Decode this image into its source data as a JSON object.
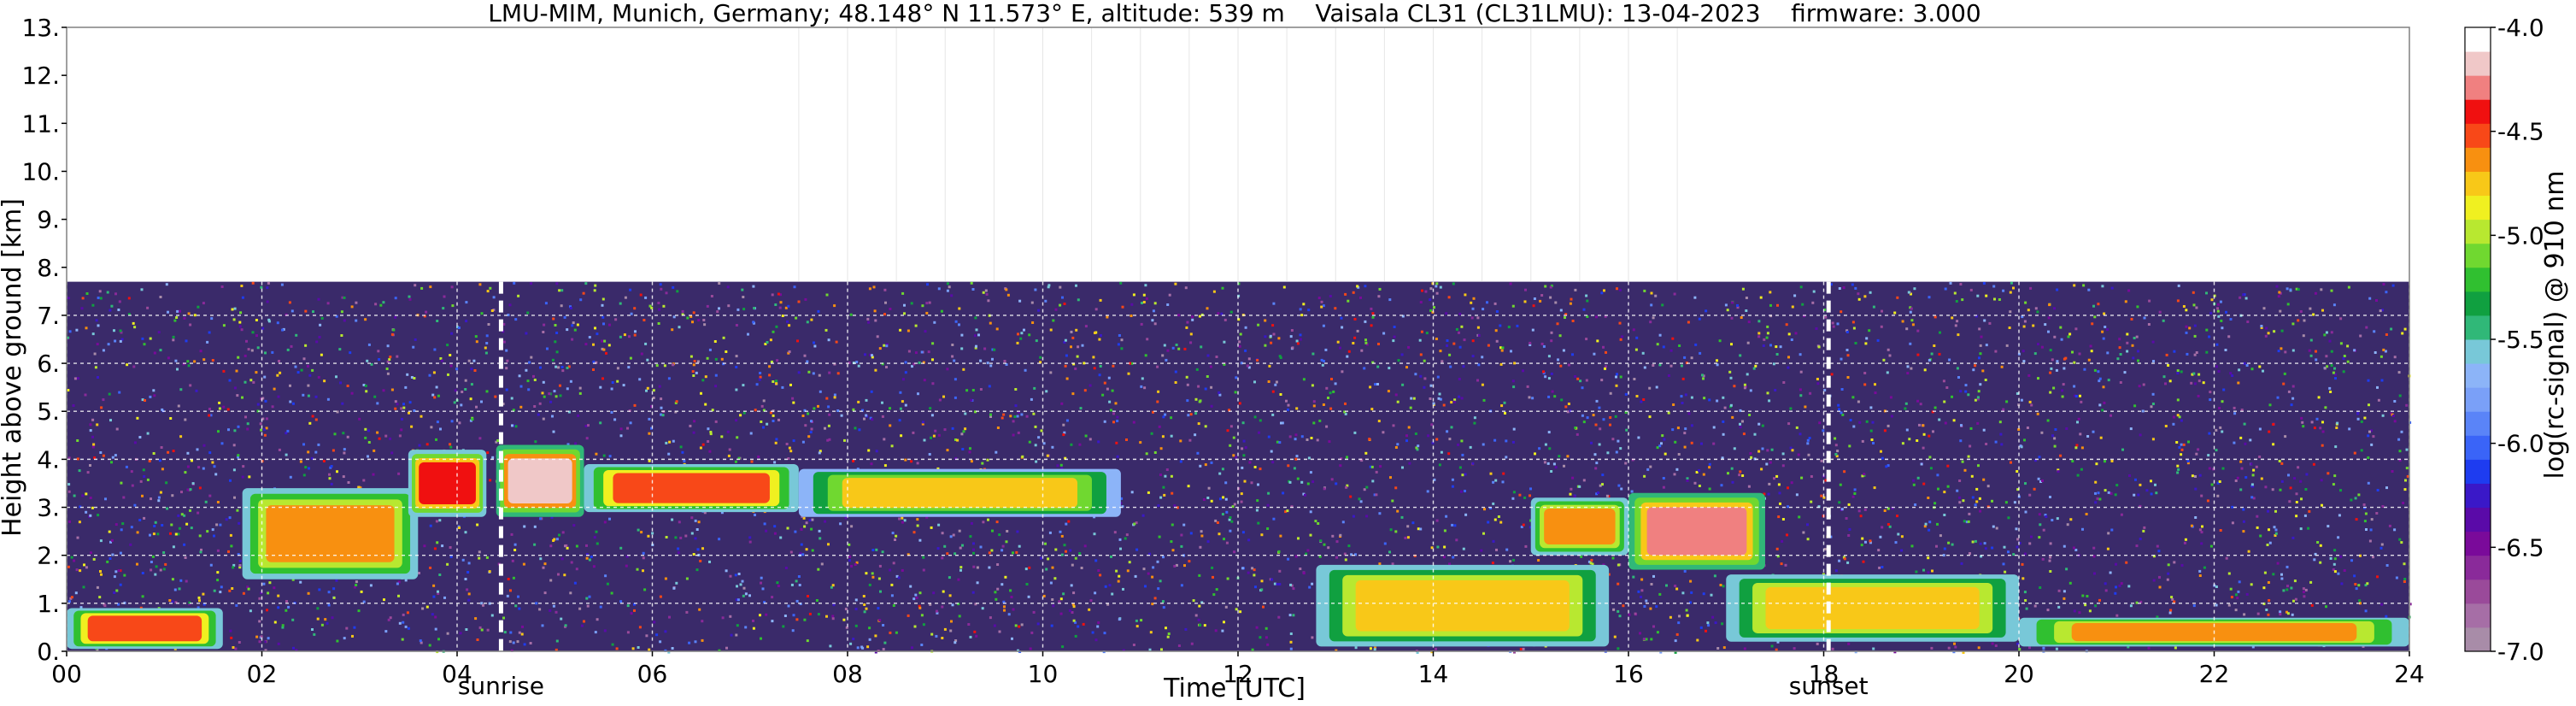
{
  "chart_data": {
    "type": "heatmap",
    "title": "LMU-MIM, Munich, Germany; 48.148° N 11.573° E, altitude: 539 m    Vaisala CL31 (CL31LMU): 13-04-2023    firmware: 3.000",
    "xlabel": "Time [UTC]",
    "ylabel": "Height above ground [km]",
    "xlim": [
      0,
      24
    ],
    "ylim": [
      0,
      13
    ],
    "x_ticks": [
      "00",
      "02",
      "04",
      "06",
      "08",
      "10",
      "12",
      "14",
      "16",
      "18",
      "20",
      "22",
      "24"
    ],
    "y_ticks": [
      "0.",
      "1.",
      "2.",
      "3.",
      "4.",
      "5.",
      "6.",
      "7.",
      "8.",
      "9.",
      "10.",
      "11.",
      "12.",
      "13."
    ],
    "grid": true,
    "colorbar": {
      "label": "log(rc-signal) @ 910 nm",
      "range": [
        -7.0,
        -4.0
      ],
      "ticks": [
        "-4.0",
        "-4.5",
        "-5.0",
        "-5.5",
        "-6.0",
        "-6.5",
        "-7.0"
      ],
      "colors": [
        "#a88ca8",
        "#a66ea6",
        "#9a4a9a",
        "#8a2a9a",
        "#7a0a9a",
        "#5a0aa8",
        "#3a18c8",
        "#1e3cf0",
        "#3a64f8",
        "#5a84f8",
        "#7aa0f8",
        "#8cb4f8",
        "#78c8d8",
        "#30b878",
        "#10a040",
        "#30c030",
        "#70d830",
        "#b8e830",
        "#f0f020",
        "#f8c818",
        "#f89010",
        "#f84818",
        "#f01010",
        "#f08080",
        "#f0c8c8",
        "#ffffff"
      ]
    },
    "annotations": [
      {
        "text": "sunrise",
        "x": 4.45
      },
      {
        "text": "sunset",
        "x": 18.05
      }
    ],
    "measurement_top_km": 7.7,
    "layers": [
      {
        "x0": 0.0,
        "x1": 1.6,
        "y0": 0.05,
        "y1": 0.9,
        "level": -4.5
      },
      {
        "x0": 1.8,
        "x1": 3.6,
        "y0": 1.5,
        "y1": 3.4,
        "level": -4.6
      },
      {
        "x0": 3.5,
        "x1": 4.3,
        "y0": 2.8,
        "y1": 4.2,
        "level": -4.4
      },
      {
        "x0": 4.4,
        "x1": 5.3,
        "y0": 2.8,
        "y1": 4.3,
        "level": -4.2
      },
      {
        "x0": 5.3,
        "x1": 7.5,
        "y0": 2.9,
        "y1": 3.9,
        "level": -4.5
      },
      {
        "x0": 7.5,
        "x1": 10.8,
        "y0": 2.8,
        "y1": 3.8,
        "level": -4.8
      },
      {
        "x0": 12.8,
        "x1": 15.8,
        "y0": 0.1,
        "y1": 1.8,
        "level": -4.7
      },
      {
        "x0": 15.0,
        "x1": 16.0,
        "y0": 2.0,
        "y1": 3.2,
        "level": -4.6
      },
      {
        "x0": 16.0,
        "x1": 17.4,
        "y0": 1.7,
        "y1": 3.3,
        "level": -4.3
      },
      {
        "x0": 17.0,
        "x1": 20.0,
        "y0": 0.2,
        "y1": 1.6,
        "level": -4.7
      },
      {
        "x0": 20.0,
        "x1": 24.0,
        "y0": 0.1,
        "y1": 0.7,
        "level": -4.6
      }
    ]
  }
}
